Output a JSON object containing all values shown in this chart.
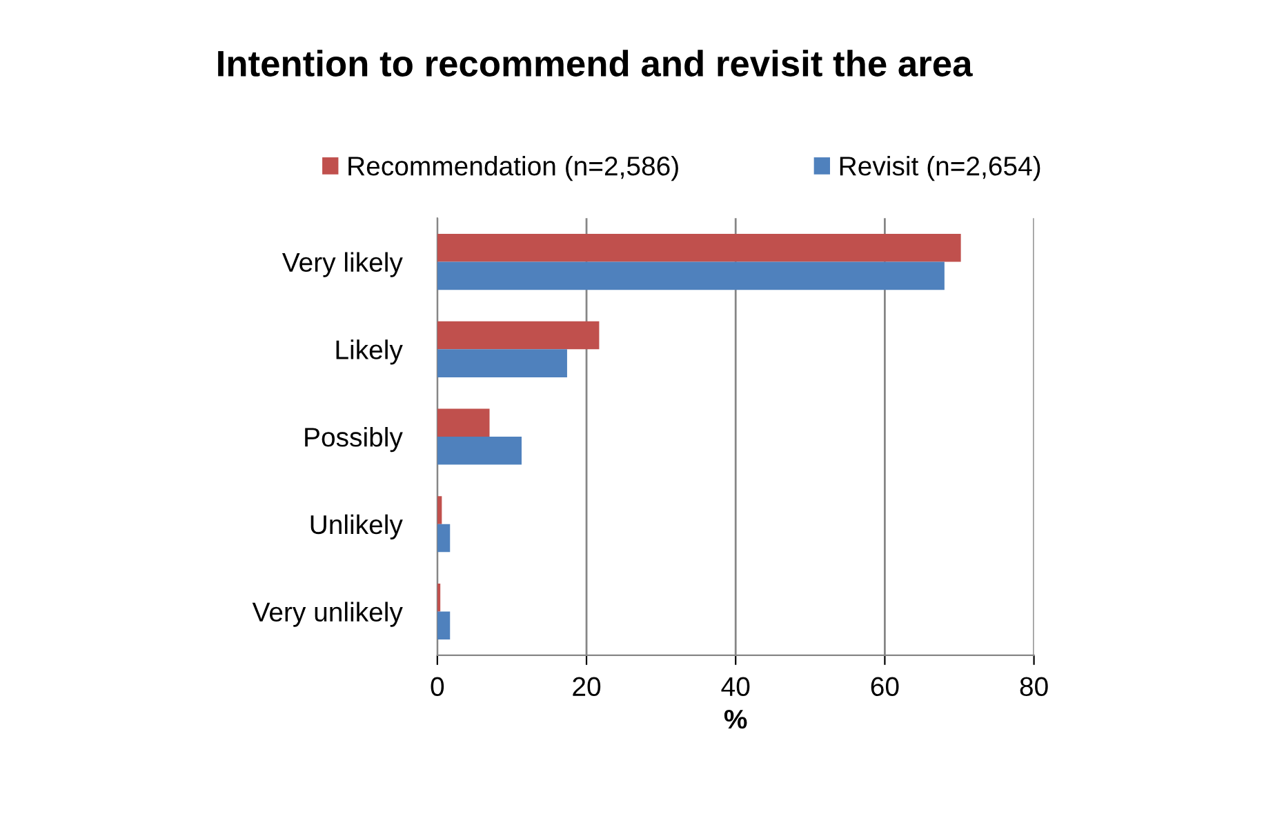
{
  "chart_data": {
    "type": "bar",
    "orientation": "horizontal",
    "title": "Intention to recommend and revisit the area",
    "xlabel": "%",
    "categories": [
      "Very likely",
      "Likely",
      "Possibly",
      "Unlikely",
      "Very unlikely"
    ],
    "series": [
      {
        "name": "Recommendation (n=2,586)",
        "color": "#c0504d",
        "values": [
          70.2,
          21.7,
          7.0,
          0.6,
          0.4
        ]
      },
      {
        "name": "Revisit (n=2,654)",
        "color": "#4f81bd",
        "values": [
          68.0,
          17.4,
          11.3,
          1.7,
          1.7
        ]
      }
    ],
    "xlim": [
      0,
      80
    ],
    "xticks": [
      0,
      20,
      40,
      60,
      80
    ],
    "grid": "x",
    "legend": "top"
  }
}
